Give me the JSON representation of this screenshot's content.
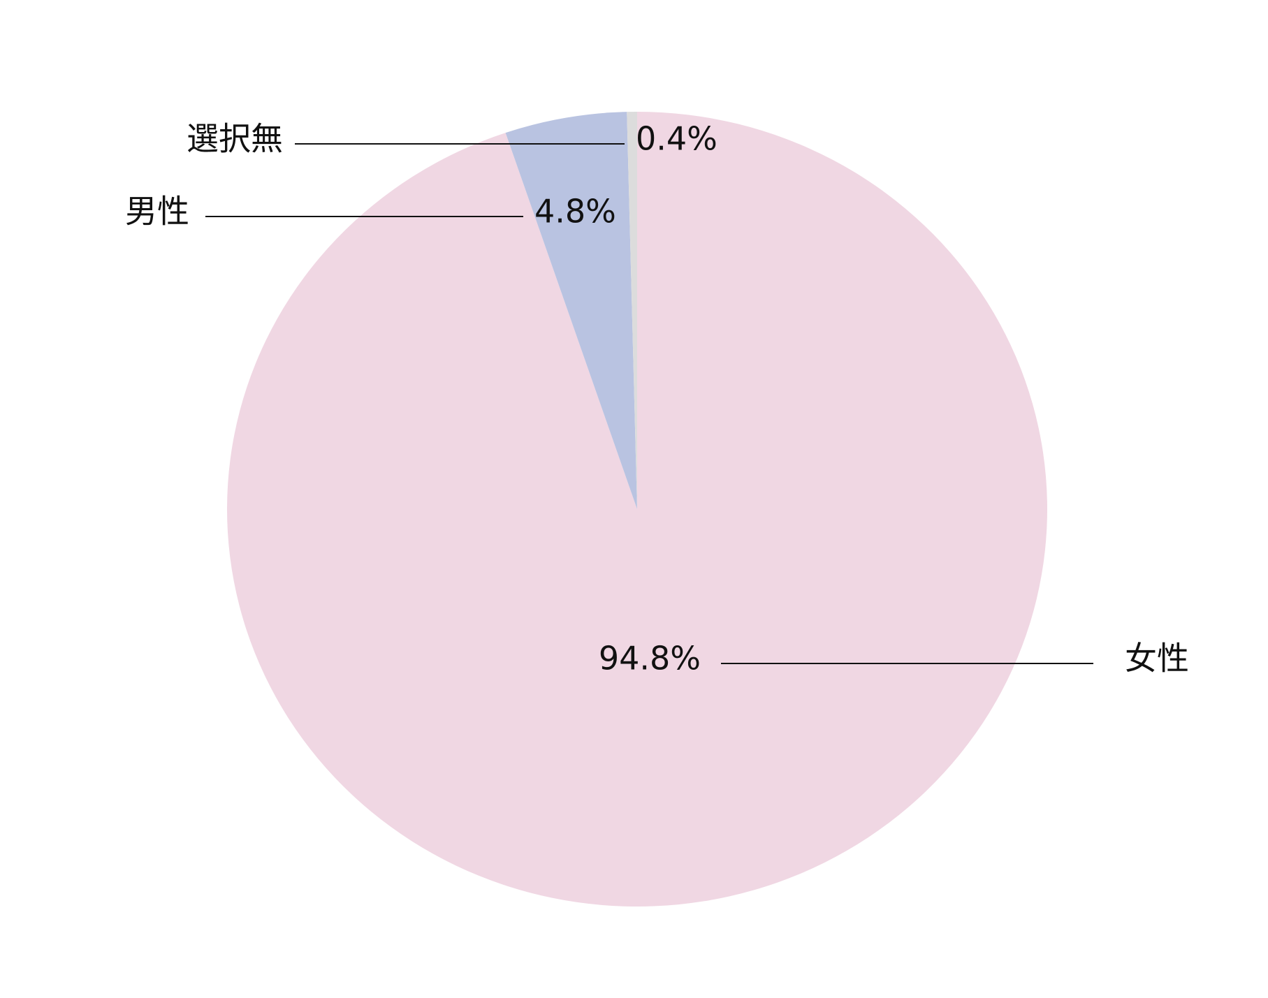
{
  "chart_data": {
    "type": "pie",
    "categories": [
      "女性",
      "男性",
      "選択無"
    ],
    "values": [
      94.8,
      4.8,
      0.4
    ],
    "value_labels": [
      "94.8%",
      "4.8%",
      "0.4%"
    ],
    "colors": [
      "#f0d7e3",
      "#b9c3e1",
      "#dcdcdc"
    ]
  }
}
